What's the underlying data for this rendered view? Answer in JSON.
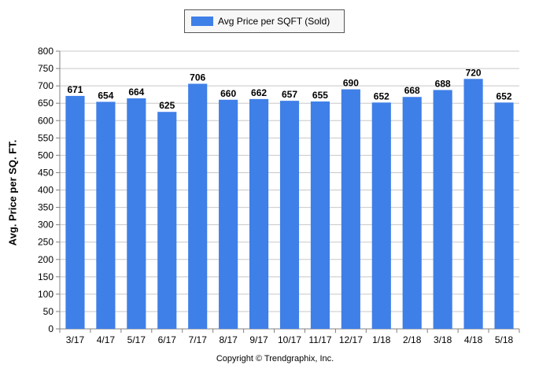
{
  "chart_data": {
    "type": "bar",
    "categories": [
      "3/17",
      "4/17",
      "5/17",
      "6/17",
      "7/17",
      "8/17",
      "9/17",
      "10/17",
      "11/17",
      "12/17",
      "1/18",
      "2/18",
      "3/18",
      "4/18",
      "5/18"
    ],
    "series": [
      {
        "name": "Avg Price per SQFT (Sold)",
        "values": [
          671,
          654,
          664,
          625,
          706,
          660,
          662,
          657,
          655,
          690,
          652,
          668,
          688,
          720,
          652
        ]
      }
    ],
    "ylabel": "Avg. Price per SQ. FT.",
    "xlabel": "",
    "ylim": [
      0,
      800
    ],
    "yticks": [
      0,
      50,
      100,
      150,
      200,
      250,
      300,
      350,
      400,
      450,
      500,
      550,
      600,
      650,
      700,
      750,
      800
    ],
    "grid": true,
    "legend_position": "top-center",
    "bar_color": "#3f7fe8"
  },
  "footer": {
    "copyright": "Copyright © Trendgraphix, Inc."
  }
}
